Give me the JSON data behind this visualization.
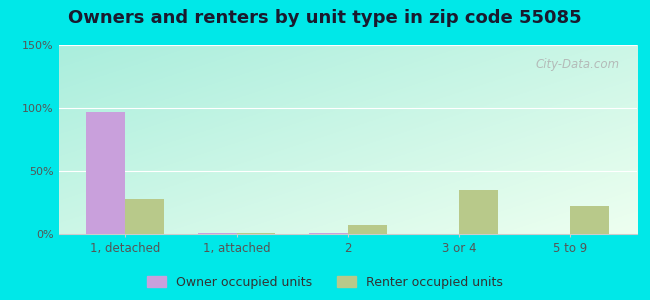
{
  "title": "Owners and renters by unit type in zip code 55085",
  "categories": [
    "1, detached",
    "1, attached",
    "2",
    "3 or 4",
    "5 to 9"
  ],
  "owner_values": [
    97,
    1,
    0.5,
    0,
    0
  ],
  "renter_values": [
    28,
    1,
    7,
    35,
    22
  ],
  "owner_color": "#c9a0dc",
  "renter_color": "#b8c98a",
  "ylim": [
    0,
    150
  ],
  "yticks": [
    0,
    50,
    100,
    150
  ],
  "ytick_labels": [
    "0%",
    "50%",
    "100%",
    "150%"
  ],
  "bg_topleft": "#aaeedd",
  "bg_bottomright": "#eefff0",
  "outer_bg": "#00e8e8",
  "title_fontsize": 13,
  "legend_fontsize": 9,
  "watermark": "City-Data.com"
}
